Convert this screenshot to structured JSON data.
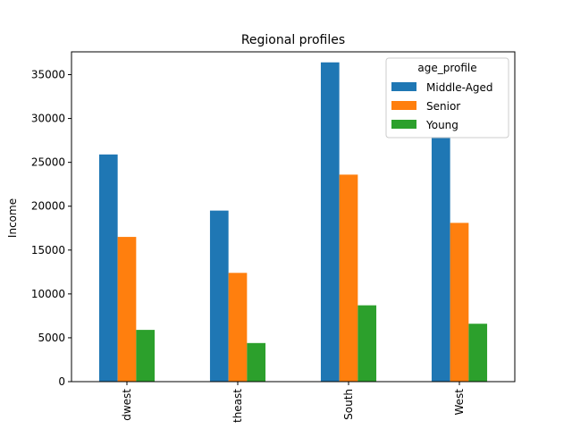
{
  "chart_data": {
    "type": "bar",
    "title": "Regional profiles",
    "xlabel": "",
    "ylabel": "Income",
    "categories": [
      "Midwest",
      "Northeast",
      "South",
      "West"
    ],
    "category_labels": [
      "dwest",
      "theast",
      "South",
      "West"
    ],
    "ylim": [
      0,
      37600
    ],
    "yticks": [
      0,
      5000,
      10000,
      15000,
      20000,
      25000,
      30000,
      35000
    ],
    "grid": false,
    "legend": {
      "title": "age_profile",
      "placement": "top-right"
    },
    "series": [
      {
        "name": "Middle-Aged",
        "color": "#1f77b4",
        "values": [
          25900,
          19500,
          36400,
          27900
        ]
      },
      {
        "name": "Senior",
        "color": "#ff7f0e",
        "values": [
          16500,
          12400,
          23600,
          18100
        ]
      },
      {
        "name": "Young",
        "color": "#2ca02c",
        "values": [
          5900,
          4400,
          8700,
          6600
        ]
      }
    ]
  }
}
